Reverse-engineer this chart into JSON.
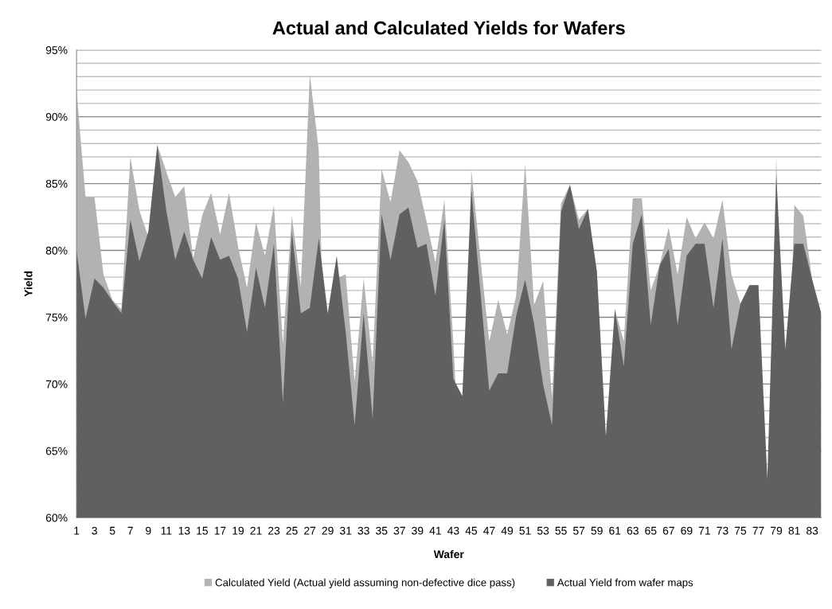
{
  "chart_data": {
    "type": "area",
    "title": "Actual and Calculated Yields for Wafers",
    "xlabel": "Wafer",
    "ylabel": "Yield",
    "categories": [
      "1",
      null,
      "3",
      null,
      "5",
      null,
      "7",
      null,
      "9",
      null,
      "11",
      null,
      "13",
      null,
      "15",
      null,
      "17",
      null,
      "19",
      null,
      "21",
      null,
      "23",
      null,
      "25",
      null,
      "27",
      null,
      "29",
      null,
      "31",
      null,
      "33",
      null,
      "35",
      null,
      "37",
      null,
      "39",
      null,
      "41",
      null,
      "43",
      null,
      "45",
      null,
      "47",
      null,
      "49",
      null,
      "51",
      null,
      "53",
      null,
      "55",
      null,
      "57",
      null,
      "59",
      null,
      "61",
      null,
      "63",
      null,
      "65",
      null,
      "67",
      null,
      "69",
      null,
      "71",
      null,
      "73",
      null,
      "75",
      null,
      "77",
      null,
      "79",
      null,
      "81",
      null,
      "83",
      null
    ],
    "series": [
      {
        "name": "Calculated Yield (Actual yield assuming non-defective dice pass)",
        "color": "#b2b2b2",
        "values": [
          92.0,
          84.0,
          84.0,
          78.2,
          76.3,
          75.6,
          87.0,
          83.0,
          81.0,
          87.9,
          85.9,
          84.0,
          84.8,
          79.4,
          82.6,
          84.3,
          81.2,
          84.3,
          80.3,
          77.2,
          82.1,
          79.6,
          83.4,
          73.0,
          82.6,
          77.3,
          93.2,
          87.5,
          null,
          77.9,
          78.2,
          70.2,
          77.9,
          71.6,
          86.1,
          83.6,
          87.5,
          86.6,
          85.2,
          82.2,
          79.1,
          83.8,
          73.1,
          null,
          86.0,
          79.5,
          73.2,
          76.3,
          73.7,
          76.6,
          86.5,
          75.9,
          77.7,
          69.0,
          83.5,
          84.9,
          82.3,
          83.1,
          78.4,
          null,
          75.6,
          73.2,
          83.9,
          83.9,
          77.0,
          78.9,
          81.7,
          78.2,
          82.5,
          80.9,
          82.1,
          80.9,
          83.8,
          78.2,
          76.0,
          77.4,
          77.4,
          null,
          87.0,
          null,
          83.4,
          82.6,
          77.8,
          75.3
        ]
      },
      {
        "name": "Actual Yield from wafer maps",
        "color": "#606060",
        "values": [
          80.0,
          74.9,
          77.9,
          77.2,
          76.2,
          75.3,
          82.3,
          79.2,
          81.4,
          87.9,
          83.0,
          79.3,
          81.4,
          79.3,
          77.9,
          81.0,
          79.3,
          79.6,
          77.9,
          73.9,
          78.7,
          75.7,
          80.5,
          68.6,
          81.4,
          75.3,
          75.7,
          80.9,
          75.3,
          79.6,
          73.9,
          66.9,
          75.3,
          67.4,
          82.7,
          79.3,
          82.7,
          83.2,
          80.2,
          80.5,
          76.6,
          82.3,
          70.4,
          69.1,
          84.6,
          77.0,
          69.5,
          70.8,
          70.8,
          75.1,
          77.8,
          74.5,
          70.0,
          66.9,
          82.9,
          84.9,
          81.6,
          83.1,
          78.4,
          66.1,
          75.6,
          71.3,
          80.5,
          82.7,
          74.4,
          78.9,
          80.1,
          74.4,
          79.6,
          80.5,
          80.5,
          75.7,
          80.9,
          72.6,
          76.0,
          77.4,
          77.4,
          62.9,
          85.6,
          72.6,
          80.5,
          80.5,
          77.8,
          75.3
        ]
      }
    ],
    "ylim": [
      60,
      95
    ],
    "yticks": [
      {
        "value": 60,
        "label": "60%"
      },
      {
        "value": 61,
        "label": null
      },
      {
        "value": 62,
        "label": null
      },
      {
        "value": 63,
        "label": null
      },
      {
        "value": 64,
        "label": null
      },
      {
        "value": 65,
        "label": "65%"
      },
      {
        "value": 66,
        "label": null
      },
      {
        "value": 67,
        "label": null
      },
      {
        "value": 68,
        "label": null
      },
      {
        "value": 69,
        "label": null
      },
      {
        "value": 70,
        "label": "70%"
      },
      {
        "value": 71,
        "label": null
      },
      {
        "value": 72,
        "label": null
      },
      {
        "value": 73,
        "label": null
      },
      {
        "value": 74,
        "label": null
      },
      {
        "value": 75,
        "label": "75%"
      },
      {
        "value": 76,
        "label": null
      },
      {
        "value": 77,
        "label": null
      },
      {
        "value": 78,
        "label": null
      },
      {
        "value": 79,
        "label": null
      },
      {
        "value": 80,
        "label": "80%"
      },
      {
        "value": 81,
        "label": null
      },
      {
        "value": 82,
        "label": null
      },
      {
        "value": 83,
        "label": null
      },
      {
        "value": 84,
        "label": null
      },
      {
        "value": 85,
        "label": "85%"
      },
      {
        "value": 86,
        "label": null
      },
      {
        "value": 87,
        "label": null
      },
      {
        "value": 88,
        "label": null
      },
      {
        "value": 89,
        "label": null
      },
      {
        "value": 90,
        "label": "90%"
      },
      {
        "value": 91,
        "label": null
      },
      {
        "value": 92,
        "label": null
      },
      {
        "value": 93,
        "label": null
      },
      {
        "value": 94,
        "label": null
      },
      {
        "value": 95,
        "label": "95%"
      }
    ],
    "grid": "y",
    "legend": "bottom"
  }
}
